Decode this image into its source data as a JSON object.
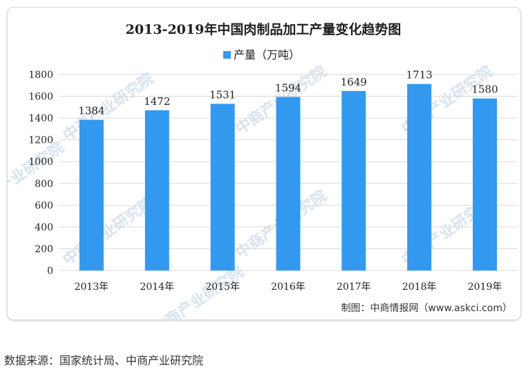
{
  "chart_data": {
    "type": "bar",
    "title": "2013-2019年中国肉制品加工产量变化趋势图",
    "categories": [
      "2013年",
      "2014年",
      "2015年",
      "2016年",
      "2017年",
      "2018年",
      "2019年"
    ],
    "series": [
      {
        "name": "产量（万吨）",
        "values": [
          1384,
          1472,
          1531,
          1594,
          1649,
          1713,
          1580
        ]
      }
    ],
    "ylim": [
      0,
      1800
    ],
    "yticks": [
      "0",
      "200",
      "400",
      "600",
      "800",
      "1000",
      "1200",
      "1400",
      "1600",
      "1800"
    ],
    "grid": true,
    "legend": "top",
    "bar_color": "#3399ee",
    "credit": "制图：中商情报网（www.askci.com）"
  },
  "watermark": {
    "text": "中商产业研究院",
    "color": "#d7e3ef"
  },
  "source_note": "数据来源：国家统计局、中商产业研究院"
}
